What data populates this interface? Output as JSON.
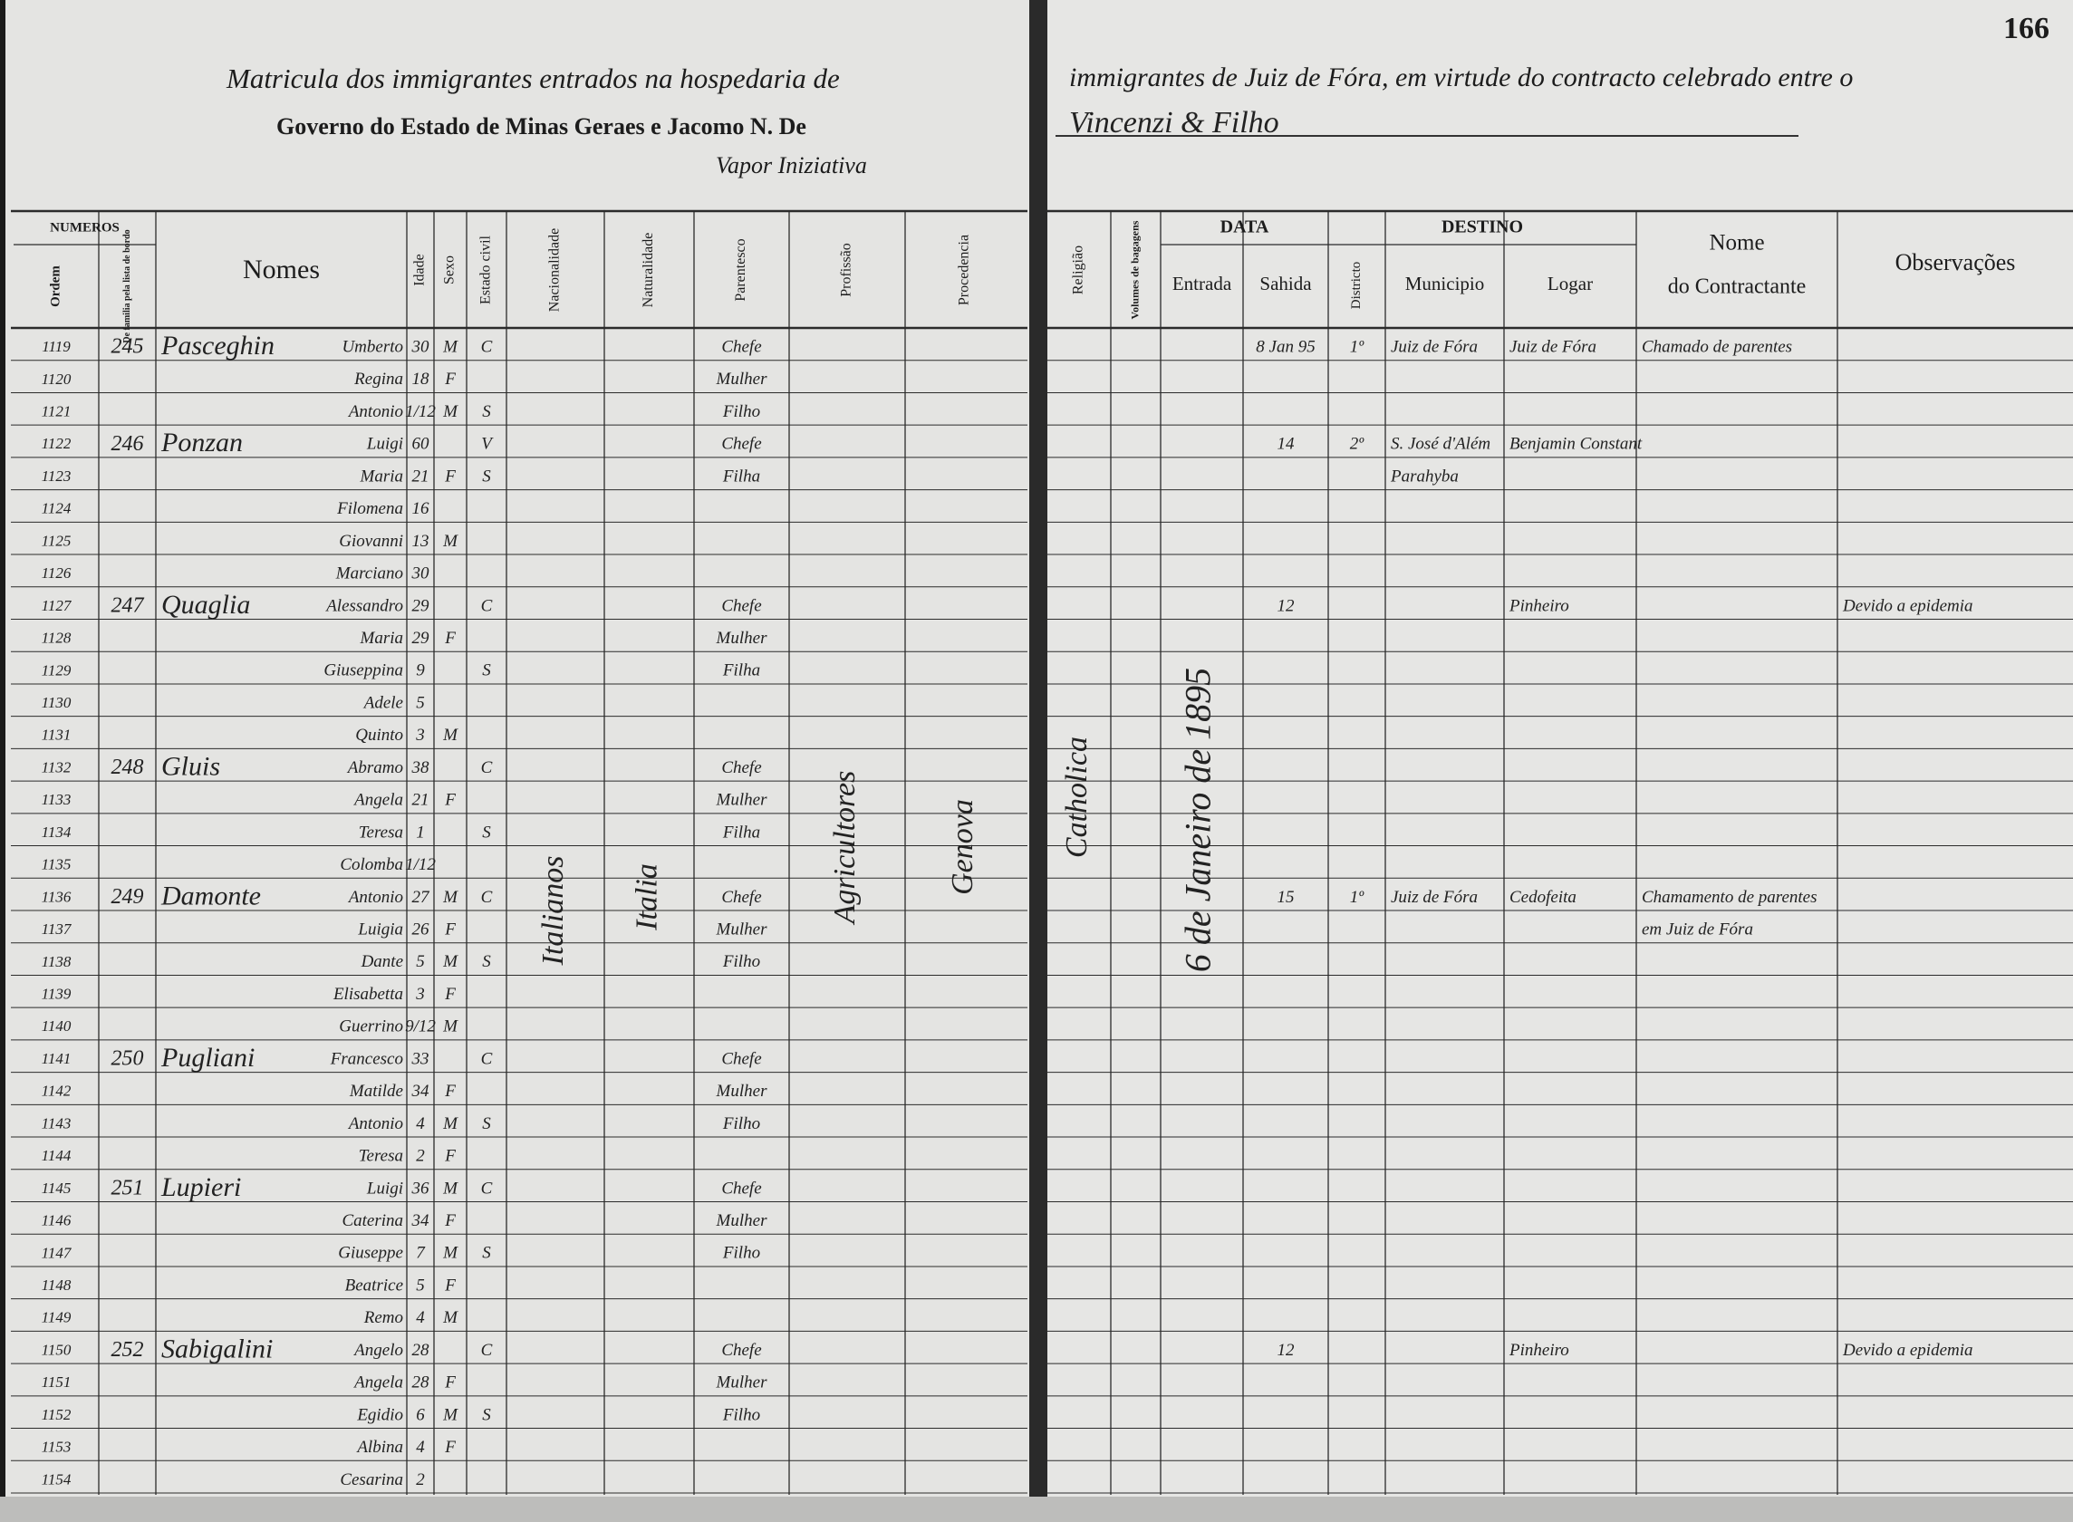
{
  "page_number": "166",
  "header": {
    "title_left": "Matricula dos immigrantes entrados na hospedaria de",
    "title_right": "immigrantes de Juiz de Fóra, em virtude do contracto celebrado entre o",
    "line2_left": "Governo do Estado de Minas Geraes e Jacomo N. De",
    "line2_right": "Vincenzi & Filho",
    "line3": "Vapor Iniziativa"
  },
  "columns": {
    "numeros": "NUMEROS",
    "ordem": "Ordem",
    "familia": "De familia pela lista de bordo",
    "nomes": "Nomes",
    "idade": "Idade",
    "sexo": "Sexo",
    "estado": "Estado civil",
    "nacionalidade": "Nacionalidade",
    "naturalidade": "Naturalidade",
    "parentesco": "Parentesco",
    "profissao": "Profissão",
    "procedencia": "Procedencia",
    "religiao": "Religião",
    "volumes": "Volumes de bagagens",
    "data": "DATA",
    "entrada": "Entrada",
    "sahida": "Sahida",
    "destino": "DESTINO",
    "districto": "Districto",
    "municipio": "Municipio",
    "logar": "Logar",
    "contractante_1": "Nome",
    "contractante_2": "do Contractante",
    "observacoes": "Observações"
  },
  "rows": [
    {
      "ordem": "1119",
      "familia": "245",
      "sobrenome": "Pasceghin",
      "nome": "Umberto",
      "idade": "30",
      "sexo": "M",
      "estado": "C",
      "parentesco": "Chefe",
      "sahida": "8 Jan 95",
      "districto": "1º",
      "municipio": "Juiz de Fóra",
      "logar": "Juiz de Fóra",
      "contractante": "Chamado de parentes"
    },
    {
      "ordem": "1120",
      "nome": "Regina",
      "idade": "18",
      "sexo": "F",
      "parentesco": "Mulher"
    },
    {
      "ordem": "1121",
      "nome": "Antonio",
      "idade": "1/12",
      "sexo": "M",
      "estado": "S",
      "parentesco": "Filho"
    },
    {
      "ordem": "1122",
      "familia": "246",
      "sobrenome": "Ponzan",
      "nome": "Luigi",
      "idade": "60",
      "estado": "V",
      "parentesco": "Chefe",
      "sahida": "14",
      "districto": "2º",
      "municipio": "S. José d'Além",
      "logar": "Benjamin Constant"
    },
    {
      "ordem": "1123",
      "nome": "Maria",
      "idade": "21",
      "sexo": "F",
      "estado": "S",
      "parentesco": "Filha",
      "municipio": "Parahyba"
    },
    {
      "ordem": "1124",
      "nome": "Filomena",
      "idade": "16"
    },
    {
      "ordem": "1125",
      "nome": "Giovanni",
      "idade": "13",
      "sexo": "M"
    },
    {
      "ordem": "1126",
      "nome": "Marciano",
      "idade": "30"
    },
    {
      "ordem": "1127",
      "familia": "247",
      "sobrenome": "Quaglia",
      "nome": "Alessandro",
      "idade": "29",
      "estado": "C",
      "parentesco": "Chefe",
      "sahida": "12",
      "logar": "Pinheiro",
      "observacoes": "Devido a epidemia"
    },
    {
      "ordem": "1128",
      "nome": "Maria",
      "idade": "29",
      "sexo": "F",
      "parentesco": "Mulher"
    },
    {
      "ordem": "1129",
      "nome": "Giuseppina",
      "idade": "9",
      "estado": "S",
      "parentesco": "Filha"
    },
    {
      "ordem": "1130",
      "nome": "Adele",
      "idade": "5"
    },
    {
      "ordem": "1131",
      "nome": "Quinto",
      "idade": "3",
      "sexo": "M"
    },
    {
      "ordem": "1132",
      "familia": "248",
      "sobrenome": "Gluis",
      "nome": "Abramo",
      "idade": "38",
      "estado": "C",
      "parentesco": "Chefe"
    },
    {
      "ordem": "1133",
      "nome": "Angela",
      "idade": "21",
      "sexo": "F",
      "parentesco": "Mulher"
    },
    {
      "ordem": "1134",
      "nome": "Teresa",
      "idade": "1",
      "estado": "S",
      "parentesco": "Filha"
    },
    {
      "ordem": "1135",
      "nome": "Colomba",
      "idade": "1/12"
    },
    {
      "ordem": "1136",
      "familia": "249",
      "sobrenome": "Damonte",
      "nome": "Antonio",
      "idade": "27",
      "sexo": "M",
      "estado": "C",
      "parentesco": "Chefe",
      "sahida": "15",
      "districto": "1º",
      "municipio": "Juiz de Fóra",
      "logar": "Cedofeita",
      "contractante": "Chamamento de parentes"
    },
    {
      "ordem": "1137",
      "nome": "Luigia",
      "idade": "26",
      "sexo": "F",
      "parentesco": "Mulher",
      "contractante": "em Juiz de Fóra"
    },
    {
      "ordem": "1138",
      "nome": "Dante",
      "idade": "5",
      "sexo": "M",
      "estado": "S",
      "parentesco": "Filho"
    },
    {
      "ordem": "1139",
      "nome": "Elisabetta",
      "idade": "3",
      "sexo": "F"
    },
    {
      "ordem": "1140",
      "nome": "Guerrino",
      "idade": "9/12",
      "sexo": "M"
    },
    {
      "ordem": "1141",
      "familia": "250",
      "sobrenome": "Pugliani",
      "nome": "Francesco",
      "idade": "33",
      "estado": "C",
      "parentesco": "Chefe"
    },
    {
      "ordem": "1142",
      "nome": "Matilde",
      "idade": "34",
      "sexo": "F",
      "parentesco": "Mulher"
    },
    {
      "ordem": "1143",
      "nome": "Antonio",
      "idade": "4",
      "sexo": "M",
      "estado": "S",
      "parentesco": "Filho"
    },
    {
      "ordem": "1144",
      "nome": "Teresa",
      "idade": "2",
      "sexo": "F"
    },
    {
      "ordem": "1145",
      "familia": "251",
      "sobrenome": "Lupieri",
      "nome": "Luigi",
      "idade": "36",
      "sexo": "M",
      "estado": "C",
      "parentesco": "Chefe"
    },
    {
      "ordem": "1146",
      "nome": "Caterina",
      "idade": "34",
      "sexo": "F",
      "parentesco": "Mulher"
    },
    {
      "ordem": "1147",
      "nome": "Giuseppe",
      "idade": "7",
      "sexo": "M",
      "estado": "S",
      "parentesco": "Filho"
    },
    {
      "ordem": "1148",
      "nome": "Beatrice",
      "idade": "5",
      "sexo": "F"
    },
    {
      "ordem": "1149",
      "nome": "Remo",
      "idade": "4",
      "sexo": "M"
    },
    {
      "ordem": "1150",
      "familia": "252",
      "sobrenome": "Sabigalini",
      "nome": "Angelo",
      "idade": "28",
      "estado": "C",
      "parentesco": "Chefe",
      "sahida": "12",
      "logar": "Pinheiro",
      "observacoes": "Devido a epidemia"
    },
    {
      "ordem": "1151",
      "nome": "Angela",
      "idade": "28",
      "sexo": "F",
      "parentesco": "Mulher"
    },
    {
      "ordem": "1152",
      "nome": "Egidio",
      "idade": "6",
      "sexo": "M",
      "estado": "S",
      "parentesco": "Filho"
    },
    {
      "ordem": "1153",
      "nome": "Albina",
      "idade": "4",
      "sexo": "F"
    },
    {
      "ordem": "1154",
      "nome": "Cesarina",
      "idade": "2"
    }
  ],
  "spans": {
    "nacionalidade": "Italianos",
    "naturalidade": "Italia",
    "profissao": "Agricultores",
    "procedencia": "Genova",
    "religiao": "Catholica",
    "entrada": "6 de Janeiro de 1895"
  }
}
